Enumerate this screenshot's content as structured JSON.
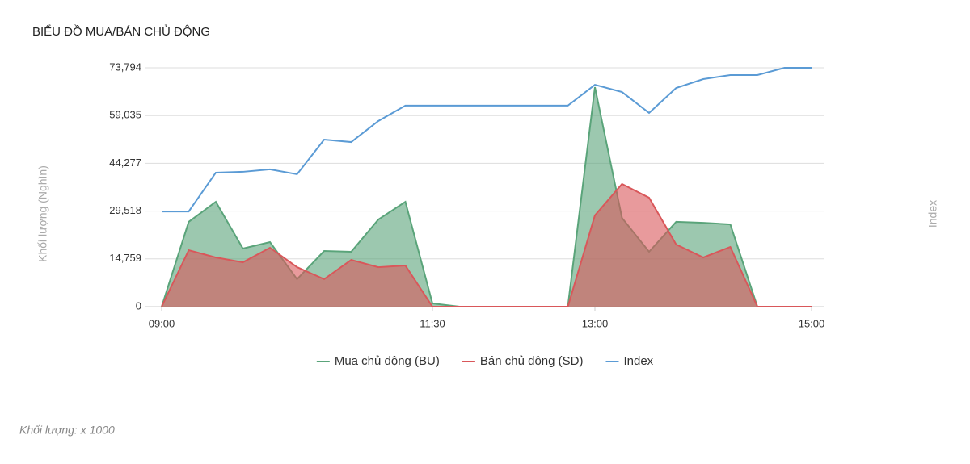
{
  "chart_data": {
    "type": "area",
    "title": "BIỂU ĐỒ MUA/BÁN CHỦ ĐỘNG",
    "ylabel": "Khối lượng (Nghìn)",
    "y2label": "Index",
    "footnote": "Khối lượng: x 1000",
    "categories": [
      "09:00",
      null,
      null,
      null,
      null,
      null,
      null,
      null,
      null,
      null,
      "11:30",
      null,
      null,
      null,
      null,
      null,
      "13:00",
      null,
      null,
      null,
      null,
      null,
      null,
      null,
      "15:00"
    ],
    "ylim": [
      0,
      73794
    ],
    "yticks": [
      0,
      {
        "value": 14759,
        "label": "14,759"
      },
      {
        "value": 29518,
        "label": "29,518"
      },
      {
        "value": 44277,
        "label": "44,277"
      },
      {
        "value": 59035,
        "label": "59,035"
      },
      {
        "value": 73794,
        "label": "73,794"
      }
    ],
    "grid": true,
    "legend": "bottom",
    "series": [
      {
        "name": "Mua chủ động (BU)",
        "type": "area",
        "color": "#5aa47a",
        "values": [
          0,
          26200,
          32400,
          17950,
          19950,
          8480,
          17200,
          16950,
          26900,
          32400,
          1000,
          0,
          0,
          0,
          0,
          0,
          67800,
          27400,
          16950,
          26200,
          25900,
          25400,
          0,
          0,
          0
        ]
      },
      {
        "name": "Bán chủ động (SD)",
        "type": "area",
        "color": "#d9575a",
        "values": [
          0,
          17450,
          15200,
          13700,
          18200,
          12200,
          8500,
          14450,
          12200,
          12700,
          0,
          0,
          0,
          0,
          0,
          0,
          28200,
          37900,
          33650,
          19200,
          15200,
          18450,
          0,
          0,
          0
        ]
      },
      {
        "name": "Index",
        "type": "line",
        "color": "#5b9bd5",
        "values": [
          29400,
          29400,
          41400,
          41650,
          42400,
          40900,
          51600,
          50850,
          57350,
          62100,
          62100,
          62100,
          62100,
          62100,
          62100,
          62100,
          68550,
          66300,
          59850,
          67550,
          70300,
          71550,
          71550,
          73794,
          73794
        ]
      }
    ]
  }
}
